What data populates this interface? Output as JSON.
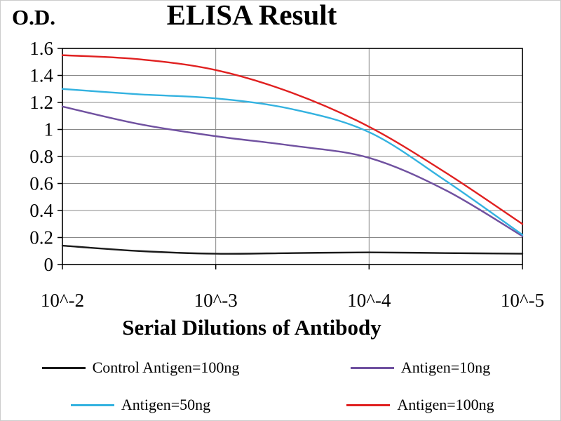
{
  "chart_data": {
    "type": "line",
    "title": "ELISA Result",
    "y_axis_label": "O.D.",
    "x_axis_label": "Serial Dilutions of Antibody",
    "x_tick_labels": [
      "10^-2",
      "10^-3",
      "10^-4",
      "10^-5"
    ],
    "y_tick_labels": [
      "0",
      "0.2",
      "0.4",
      "0.6",
      "0.8",
      "1",
      "1.2",
      "1.4",
      "1.6"
    ],
    "ylim": [
      0,
      1.6
    ],
    "grid": true,
    "legend_position": "bottom",
    "x": [
      0,
      0.5,
      1,
      1.5,
      2,
      2.5,
      3
    ],
    "series": [
      {
        "name": "Control Antigen=100ng",
        "color": "#1a1a1a",
        "values": [
          0.14,
          0.1,
          0.08,
          0.085,
          0.09,
          0.085,
          0.08
        ]
      },
      {
        "name": "Antigen=10ng",
        "color": "#7051a0",
        "values": [
          1.17,
          1.04,
          0.95,
          0.88,
          0.79,
          0.55,
          0.21
        ]
      },
      {
        "name": "Antigen=50ng",
        "color": "#33b2e0",
        "values": [
          1.3,
          1.26,
          1.23,
          1.15,
          0.98,
          0.62,
          0.22
        ]
      },
      {
        "name": "Antigen=100ng",
        "color": "#e02020",
        "values": [
          1.55,
          1.52,
          1.44,
          1.27,
          1.02,
          0.68,
          0.3
        ]
      }
    ]
  }
}
